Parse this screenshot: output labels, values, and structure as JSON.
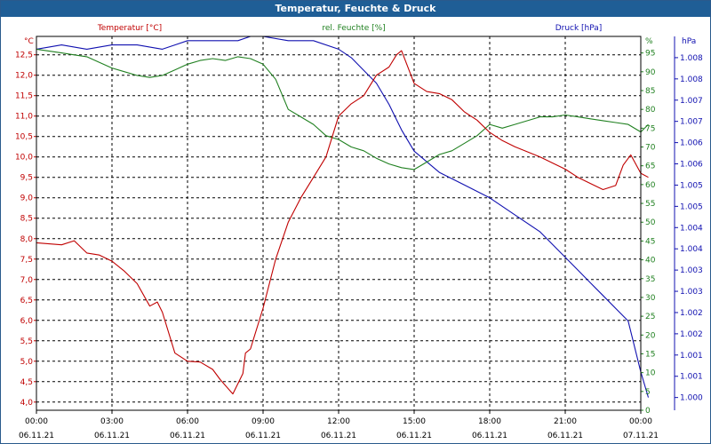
{
  "chart_data": {
    "type": "line",
    "title": "Temperatur, Feuchte & Druck",
    "x_ticks": [
      {
        "time": "00:00",
        "date": "06.11.21"
      },
      {
        "time": "03:00",
        "date": "06.11.21"
      },
      {
        "time": "06:00",
        "date": "06.11.21"
      },
      {
        "time": "09:00",
        "date": "06.11.21"
      },
      {
        "time": "12:00",
        "date": "06.11.21"
      },
      {
        "time": "15:00",
        "date": "06.11.21"
      },
      {
        "time": "18:00",
        "date": "06.11.21"
      },
      {
        "time": "21:00",
        "date": "06.11.21"
      },
      {
        "time": "00:00",
        "date": "07.11.21"
      }
    ],
    "x_range_hours": [
      0,
      24
    ],
    "axes": {
      "temperature": {
        "label": "Temperatur [°C]",
        "unit": "°C",
        "color": "#c00000",
        "range": [
          3.8,
          12.95
        ],
        "ticks": [
          "4,0",
          "4,5",
          "5,0",
          "5,5",
          "6,0",
          "6,5",
          "7,0",
          "7,5",
          "8,0",
          "8,5",
          "9,0",
          "9,5",
          "10,0",
          "10,5",
          "11,0",
          "11,5",
          "12,0",
          "12,5"
        ],
        "tick_values": [
          4.0,
          4.5,
          5.0,
          5.5,
          6.0,
          6.5,
          7.0,
          7.5,
          8.0,
          8.5,
          9.0,
          9.5,
          10.0,
          10.5,
          11.0,
          11.5,
          12.0,
          12.5
        ]
      },
      "humidity": {
        "label": "rel. Feuchte [%]",
        "unit": "%",
        "color": "#208020",
        "range": [
          0,
          99.4
        ],
        "ticks": [
          "0",
          "5",
          "10",
          "15",
          "20",
          "25",
          "30",
          "35",
          "40",
          "45",
          "50",
          "55",
          "60",
          "65",
          "70",
          "75",
          "80",
          "85",
          "90",
          "95"
        ],
        "tick_values": [
          0,
          5,
          10,
          15,
          20,
          25,
          30,
          35,
          40,
          45,
          50,
          55,
          60,
          65,
          70,
          75,
          80,
          85,
          90,
          95
        ]
      },
      "pressure": {
        "label": "Druck [hPa]",
        "unit": "hPa",
        "color": "#1010b0",
        "range": [
          0.9997,
          1.0085
        ],
        "ticks": [
          "1.000",
          "1.001",
          "1.001",
          "1.002",
          "1.002",
          "1.003",
          "1.003",
          "1.004",
          "1.004",
          "1.005",
          "1.005",
          "1.006",
          "1.006",
          "1.007",
          "1.007",
          "1.008",
          "1.008"
        ],
        "tick_values": [
          1.0,
          1.0005,
          1.001,
          1.0015,
          1.002,
          1.0025,
          1.003,
          1.0035,
          1.004,
          1.0045,
          1.005,
          1.0055,
          1.006,
          1.0065,
          1.007,
          1.0075,
          1.008
        ]
      }
    },
    "series": [
      {
        "name": "Temperatur [°C]",
        "axis": "temperature",
        "color": "#c00000",
        "points": [
          [
            0,
            7.9
          ],
          [
            1,
            7.85
          ],
          [
            1.5,
            7.95
          ],
          [
            2,
            7.65
          ],
          [
            2.5,
            7.6
          ],
          [
            3,
            7.45
          ],
          [
            3.5,
            7.2
          ],
          [
            4,
            6.9
          ],
          [
            4.5,
            6.35
          ],
          [
            4.8,
            6.45
          ],
          [
            5,
            6.2
          ],
          [
            5.5,
            5.2
          ],
          [
            6,
            5.0
          ],
          [
            6.5,
            4.98
          ],
          [
            7,
            4.8
          ],
          [
            7.3,
            4.55
          ],
          [
            7.8,
            4.2
          ],
          [
            8.2,
            4.7
          ],
          [
            8.3,
            5.2
          ],
          [
            8.5,
            5.3
          ],
          [
            9,
            6.3
          ],
          [
            9.5,
            7.5
          ],
          [
            10,
            8.4
          ],
          [
            10.5,
            9.0
          ],
          [
            11,
            9.5
          ],
          [
            11.5,
            10.0
          ],
          [
            12,
            11.0
          ],
          [
            12.5,
            11.3
          ],
          [
            13,
            11.5
          ],
          [
            13.3,
            11.8
          ],
          [
            13.5,
            12.0
          ],
          [
            14,
            12.2
          ],
          [
            14.3,
            12.5
          ],
          [
            14.5,
            12.6
          ],
          [
            15,
            11.8
          ],
          [
            15.5,
            11.6
          ],
          [
            16,
            11.55
          ],
          [
            16.5,
            11.4
          ],
          [
            17,
            11.1
          ],
          [
            17.5,
            10.9
          ],
          [
            18,
            10.6
          ],
          [
            18.5,
            10.4
          ],
          [
            19,
            10.25
          ],
          [
            20,
            10.0
          ],
          [
            20.5,
            9.85
          ],
          [
            21,
            9.7
          ],
          [
            21.5,
            9.5
          ],
          [
            22,
            9.35
          ],
          [
            22.5,
            9.2
          ],
          [
            23,
            9.3
          ],
          [
            23.3,
            9.8
          ],
          [
            23.6,
            10.05
          ],
          [
            24,
            9.6
          ],
          [
            24.3,
            9.5
          ]
        ]
      },
      {
        "name": "rel. Feuchte [%]",
        "axis": "humidity",
        "color": "#208020",
        "points": [
          [
            0,
            96
          ],
          [
            1,
            95
          ],
          [
            1.5,
            94.5
          ],
          [
            2,
            94
          ],
          [
            2.5,
            92.5
          ],
          [
            3,
            91
          ],
          [
            3.5,
            90
          ],
          [
            4,
            89
          ],
          [
            4.5,
            88.5
          ],
          [
            5,
            89
          ],
          [
            5.5,
            90.5
          ],
          [
            6,
            92
          ],
          [
            6.5,
            93
          ],
          [
            7,
            93.5
          ],
          [
            7.5,
            93
          ],
          [
            8,
            94
          ],
          [
            8.5,
            93.5
          ],
          [
            9,
            92
          ],
          [
            9.5,
            88
          ],
          [
            10,
            80
          ],
          [
            10.5,
            78
          ],
          [
            11,
            76
          ],
          [
            11.5,
            73
          ],
          [
            12,
            72
          ],
          [
            12.5,
            70
          ],
          [
            13,
            69
          ],
          [
            13.5,
            67
          ],
          [
            14,
            65.5
          ],
          [
            14.5,
            64.5
          ],
          [
            15,
            64
          ],
          [
            15.5,
            66
          ],
          [
            16,
            68
          ],
          [
            16.5,
            69
          ],
          [
            17,
            71
          ],
          [
            17.5,
            73
          ],
          [
            18,
            76
          ],
          [
            18.5,
            75
          ],
          [
            19,
            76
          ],
          [
            19.5,
            77
          ],
          [
            20,
            78
          ],
          [
            20.5,
            78
          ],
          [
            21,
            78.5
          ],
          [
            21.5,
            78
          ],
          [
            22,
            77.5
          ],
          [
            22.5,
            77
          ],
          [
            23,
            76.5
          ],
          [
            23.5,
            76
          ],
          [
            24,
            74
          ],
          [
            24.3,
            76
          ]
        ]
      },
      {
        "name": "Druck [hPa]",
        "axis": "pressure",
        "color": "#1010b0",
        "points": [
          [
            0,
            1.0082
          ],
          [
            1,
            1.0083
          ],
          [
            2,
            1.0082
          ],
          [
            3,
            1.0083
          ],
          [
            4,
            1.0083
          ],
          [
            5,
            1.0082
          ],
          [
            5.5,
            1.0083
          ],
          [
            6,
            1.0084
          ],
          [
            7,
            1.0084
          ],
          [
            7.5,
            1.0084
          ],
          [
            8,
            1.0084
          ],
          [
            8.5,
            1.0085
          ],
          [
            9,
            1.0085
          ],
          [
            10,
            1.0084
          ],
          [
            11,
            1.0084
          ],
          [
            12,
            1.0082
          ],
          [
            12.5,
            1.008
          ],
          [
            13,
            1.0077
          ],
          [
            13.5,
            1.0074
          ],
          [
            14,
            1.0069
          ],
          [
            14.5,
            1.0063
          ],
          [
            15,
            1.0058
          ],
          [
            16,
            1.0053
          ],
          [
            17,
            1.005
          ],
          [
            18,
            1.0047
          ],
          [
            19,
            1.0043
          ],
          [
            20,
            1.0039
          ],
          [
            21,
            1.0033
          ],
          [
            21.5,
            1.003
          ],
          [
            22,
            1.0027
          ],
          [
            22.5,
            1.0024
          ],
          [
            23,
            1.0021
          ],
          [
            23.5,
            1.0018
          ],
          [
            24,
            1.0006
          ],
          [
            24.3,
            1.0
          ]
        ]
      }
    ]
  }
}
